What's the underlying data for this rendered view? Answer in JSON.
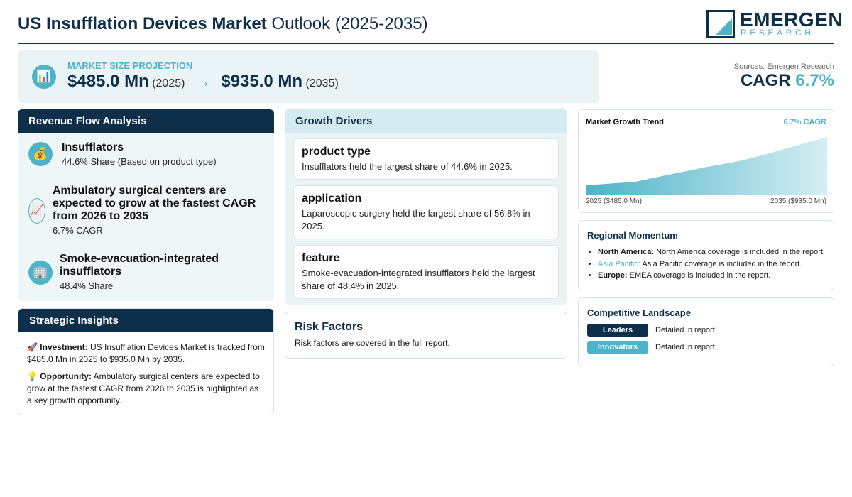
{
  "header": {
    "title_bold": "US Insufflation Devices Market",
    "title_rest": "Outlook (2025-2035)",
    "logo_top": "EMERGEN",
    "logo_bottom": "RESEARCH"
  },
  "projection": {
    "icon": "📊",
    "label": "MARKET SIZE PROJECTION",
    "start_value": "$485.0 Mn",
    "start_year": "(2025)",
    "arrow": "→",
    "end_value": "$935.0 Mn",
    "end_year": "(2035)"
  },
  "summary": {
    "sources": "Sources: Emergen Research",
    "cagr_label": "CAGR",
    "cagr_value": "6.7%"
  },
  "revenue_flow": {
    "title": "Revenue Flow Analysis",
    "items": [
      {
        "icon": "💰",
        "title": "Insufflators",
        "subtitle": "44.6% Share (Based on product type)"
      },
      {
        "icon": "📈",
        "title": "Ambulatory surgical centers are expected to grow at the fastest CAGR from 2026 to 2035",
        "subtitle": "6.7% CAGR"
      },
      {
        "icon": "🏢",
        "title": "Smoke-evacuation-integrated insufflators",
        "subtitle": "48.4% Share"
      }
    ]
  },
  "strategic_insights": {
    "title": "Strategic Insights",
    "items": [
      {
        "icon": "🚀",
        "label": "Investment:",
        "text": "US Insufflation Devices Market is tracked from $485.0 Mn in 2025 to $935.0 Mn by 2035."
      },
      {
        "icon": "💡",
        "label": "Opportunity:",
        "text": "Ambulatory surgical centers are expected to grow at the fastest CAGR from 2026 to 2035 is highlighted as a key growth opportunity."
      }
    ]
  },
  "growth_drivers": {
    "title": "Growth Drivers",
    "items": [
      {
        "title": "product type",
        "text": "Insufflators held the largest share of 44.6% in 2025."
      },
      {
        "title": "application",
        "text": "Laparoscopic surgery held the largest share of 56.8% in 2025."
      },
      {
        "title": "feature",
        "text": "Smoke-evacuation-integrated insufflators held the largest share of 48.4% in 2025."
      }
    ]
  },
  "risk_factors": {
    "title": "Risk Factors",
    "text": "Risk factors are covered in the full report."
  },
  "growth_trend": {
    "title": "Market Growth Trend",
    "cagr": "6.7% CAGR",
    "start_label": "2025 ($485.0 Mn)",
    "end_label": "2035 ($935.0 Mn)"
  },
  "regional_momentum": {
    "title": "Regional Momentum",
    "items": [
      {
        "region": "North America:",
        "text": "North America coverage is included in the report."
      },
      {
        "region": "Asia Pacific:",
        "text": "Asia Pacific coverage is included in the report."
      },
      {
        "region": "Europe:",
        "text": "EMEA coverage is included in the report."
      }
    ]
  },
  "competitive_landscape": {
    "title": "Competitive Landscape",
    "items": [
      {
        "badge": "Leaders",
        "text": "Detailed in report"
      },
      {
        "badge": "Innovators",
        "text": "Detailed in report"
      }
    ]
  }
}
